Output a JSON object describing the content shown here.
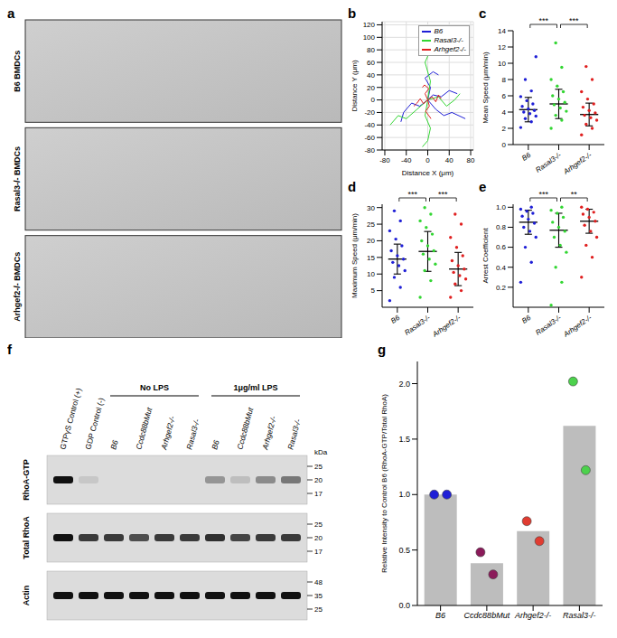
{
  "panel_a": {
    "panel": "a",
    "images": [
      "B6 BMDCs",
      "Rasal3-/- BMDCs",
      "Arhgef2-/- BMDCs"
    ]
  },
  "blot": {
    "panel": "f",
    "lanes": [
      "GTPγS Control (+)",
      "GDP Control (-)",
      "B6",
      "Ccdc88bMut",
      "Arhgef2-/-",
      "Rasal3-/-",
      "B6",
      "Ccdc88bMut",
      "Arhgef2-/-",
      "Rasal3-/-"
    ],
    "groups": [
      {
        "label": "No LPS",
        "from": 2,
        "to": 5
      },
      {
        "label": "1μg/ml LPS",
        "from": 6,
        "to": 9
      }
    ],
    "rows": [
      {
        "label": "RhoA-GTP",
        "intensity": [
          1.0,
          0.1,
          0,
          0,
          0,
          0,
          0.35,
          0.15,
          0.4,
          0.5
        ],
        "markers": [
          25,
          20,
          17
        ],
        "unit": "kDa"
      },
      {
        "label": "Total RhoA",
        "intensity": [
          1.0,
          0.8,
          0.8,
          0.7,
          0.8,
          0.8,
          0.85,
          0.75,
          0.8,
          0.8
        ],
        "markers": [
          25,
          20,
          17
        ]
      },
      {
        "label": "Actin",
        "intensity": [
          1,
          1,
          1,
          1,
          1,
          1,
          1,
          1,
          1,
          1
        ],
        "markers": [
          48,
          35,
          25
        ]
      }
    ]
  },
  "chart_data": [
    {
      "panel": "b",
      "type": "trajectory",
      "x_label": "Distance X (μm)",
      "y_label": "Distance Y (μm)",
      "xlim": [
        -85,
        85
      ],
      "xticks": [
        -80,
        -40,
        0,
        40,
        80
      ],
      "ylim": [
        -80,
        125
      ],
      "yticks": [
        -80,
        -60,
        -40,
        -20,
        0,
        20,
        40,
        60,
        80,
        100,
        120
      ],
      "grid": true,
      "legend": "top-right",
      "series": [
        {
          "name": "B6",
          "color": "#1f1fd6",
          "tracks": [
            [
              [
                0,
                0
              ],
              [
                10,
                8
              ],
              [
                25,
                5
              ],
              [
                40,
                15
              ],
              [
                55,
                10
              ]
            ],
            [
              [
                0,
                0
              ],
              [
                -15,
                -10
              ],
              [
                -30,
                -5
              ],
              [
                -45,
                -20
              ],
              [
                -50,
                -35
              ]
            ],
            [
              [
                0,
                0
              ],
              [
                5,
                20
              ],
              [
                -5,
                35
              ],
              [
                10,
                45
              ],
              [
                20,
                40
              ]
            ],
            [
              [
                0,
                0
              ],
              [
                15,
                -15
              ],
              [
                30,
                -25
              ],
              [
                45,
                -20
              ],
              [
                70,
                -30
              ]
            ]
          ]
        },
        {
          "name": "Rasal3-/-",
          "color": "#33d633",
          "tracks": [
            [
              [
                0,
                0
              ],
              [
                5,
                30
              ],
              [
                -5,
                60
              ],
              [
                10,
                90
              ],
              [
                0,
                115
              ]
            ],
            [
              [
                0,
                0
              ],
              [
                -20,
                -15
              ],
              [
                -40,
                -30
              ],
              [
                -55,
                -25
              ],
              [
                -70,
                -40
              ]
            ],
            [
              [
                0,
                0
              ],
              [
                20,
                5
              ],
              [
                35,
                -10
              ],
              [
                50,
                0
              ],
              [
                60,
                10
              ]
            ],
            [
              [
                0,
                0
              ],
              [
                -5,
                -25
              ],
              [
                5,
                -45
              ],
              [
                0,
                -65
              ],
              [
                -10,
                -75
              ]
            ]
          ]
        },
        {
          "name": "Arhgef2-/-",
          "color": "#e02020",
          "tracks": [
            [
              [
                0,
                0
              ],
              [
                8,
                5
              ],
              [
                15,
                -3
              ],
              [
                20,
                8
              ],
              [
                25,
                2
              ]
            ],
            [
              [
                0,
                0
              ],
              [
                -8,
                -6
              ],
              [
                -14,
                2
              ],
              [
                -20,
                -5
              ],
              [
                -26,
                -10
              ]
            ],
            [
              [
                0,
                0
              ],
              [
                3,
                -10
              ],
              [
                -4,
                -18
              ],
              [
                2,
                -25
              ],
              [
                6,
                -30
              ]
            ],
            [
              [
                0,
                0
              ],
              [
                -5,
                10
              ],
              [
                2,
                18
              ],
              [
                -6,
                24
              ],
              [
                -10,
                20
              ]
            ]
          ]
        }
      ]
    },
    {
      "panel": "c",
      "type": "dot",
      "y_label": "Mean Speed (μm/min)",
      "categories": [
        "B6",
        "Rasal3-/-",
        "Arhgef2-/-"
      ],
      "colors": [
        "#1f1fd6",
        "#33d633",
        "#e02020"
      ],
      "values": [
        [
          2.1,
          2.8,
          3.2,
          3.5,
          3.8,
          4.0,
          4.2,
          4.4,
          4.7,
          5.0,
          5.4,
          5.9,
          6.6,
          8.0,
          10.8
        ],
        [
          2.0,
          3.0,
          3.6,
          4.1,
          4.5,
          4.9,
          5.2,
          5.6,
          6.0,
          6.5,
          7.2,
          8.0,
          9.5,
          12.5
        ],
        [
          1.2,
          2.0,
          2.5,
          3.0,
          3.3,
          3.6,
          3.9,
          4.2,
          4.6,
          5.0,
          5.6,
          6.5,
          8.0,
          9.6
        ]
      ],
      "mean": [
        4.3,
        5.0,
        3.7
      ],
      "sd": [
        1.5,
        1.8,
        1.4
      ],
      "ylim": [
        0,
        14
      ],
      "yticks": [
        0,
        2,
        4,
        6,
        8,
        10,
        12,
        14
      ],
      "significance": [
        {
          "from": 0,
          "to": 1,
          "label": "***"
        },
        {
          "from": 1,
          "to": 2,
          "label": "***"
        }
      ]
    },
    {
      "panel": "d",
      "type": "dot",
      "y_label": "Maximum Speed (μm/min)",
      "categories": [
        "B6",
        "Rasal3-/-",
        "Arhgef2-/-"
      ],
      "colors": [
        "#1f1fd6",
        "#33d633",
        "#e02020"
      ],
      "values": [
        [
          2,
          6,
          9,
          11,
          12.5,
          13.5,
          14.5,
          15.5,
          17,
          18.5,
          20.5,
          23,
          26,
          29
        ],
        [
          3,
          8,
          11,
          13,
          14.5,
          16,
          17,
          18.5,
          20,
          22,
          24,
          26,
          28,
          30
        ],
        [
          3,
          5,
          7,
          8.5,
          9.5,
          10.5,
          11.5,
          12.5,
          14,
          15.5,
          18,
          21,
          25,
          28
        ]
      ],
      "mean": [
        14.5,
        16.8,
        11.5
      ],
      "sd": [
        4.5,
        6.0,
        5.0
      ],
      "ylim": [
        0,
        31
      ],
      "yticks": [
        5,
        10,
        15,
        20,
        25,
        30
      ],
      "significance": [
        {
          "from": 0,
          "to": 1,
          "label": "***"
        },
        {
          "from": 1,
          "to": 2,
          "label": "***"
        }
      ]
    },
    {
      "panel": "e",
      "type": "dot",
      "y_label": "Arrest Coefficient",
      "categories": [
        "B6",
        "Rasal3-/-",
        "Arhgef2-/-"
      ],
      "colors": [
        "#1f1fd6",
        "#33d633",
        "#e02020"
      ],
      "values": [
        [
          0.25,
          0.45,
          0.6,
          0.7,
          0.76,
          0.8,
          0.84,
          0.88,
          0.91,
          0.94,
          0.96,
          0.98,
          1.0
        ],
        [
          0.02,
          0.25,
          0.4,
          0.55,
          0.62,
          0.7,
          0.76,
          0.8,
          0.85,
          0.9,
          0.94,
          0.97,
          1.0
        ],
        [
          0.3,
          0.5,
          0.62,
          0.7,
          0.76,
          0.82,
          0.86,
          0.9,
          0.93,
          0.95,
          0.98,
          1.0
        ]
      ],
      "mean": [
        0.85,
        0.77,
        0.86
      ],
      "sd": [
        0.12,
        0.17,
        0.12
      ],
      "ylim": [
        0,
        1.03
      ],
      "yticks": [
        0.2,
        0.4,
        0.6,
        0.8,
        {
          "value": 1,
          "label": "1.0"
        }
      ],
      "significance": [
        {
          "from": 0,
          "to": 1,
          "label": "***"
        },
        {
          "from": 1,
          "to": 2,
          "label": "**"
        }
      ]
    },
    {
      "panel": "g",
      "type": "bar",
      "y_label": "Relative Intensity to Control B6 (RhoA-GTP/Total RhoA)",
      "categories": [
        "B6",
        "Ccdc88bMut",
        "Arhgef2-/-",
        "Rasal3-/-"
      ],
      "values": [
        1.0,
        0.38,
        0.67,
        1.62
      ],
      "color": "#bdbdbd",
      "points": [
        [
          1.0,
          1.0
        ],
        [
          0.48,
          0.28
        ],
        [
          0.76,
          0.58
        ],
        [
          2.02,
          1.22
        ]
      ],
      "colors": [
        "#1f1fd6",
        "#8b1a5a",
        "#e03c31",
        "#4cd14c"
      ],
      "ylim": [
        0,
        2.2
      ],
      "yticks": [
        {
          "value": 0,
          "label": "0.0"
        },
        {
          "value": 0.5,
          "label": "0.5"
        },
        {
          "value": 1,
          "label": "1.0"
        },
        {
          "value": 1.5,
          "label": "1.5"
        },
        {
          "value": 2,
          "label": "2.0"
        }
      ]
    }
  ]
}
